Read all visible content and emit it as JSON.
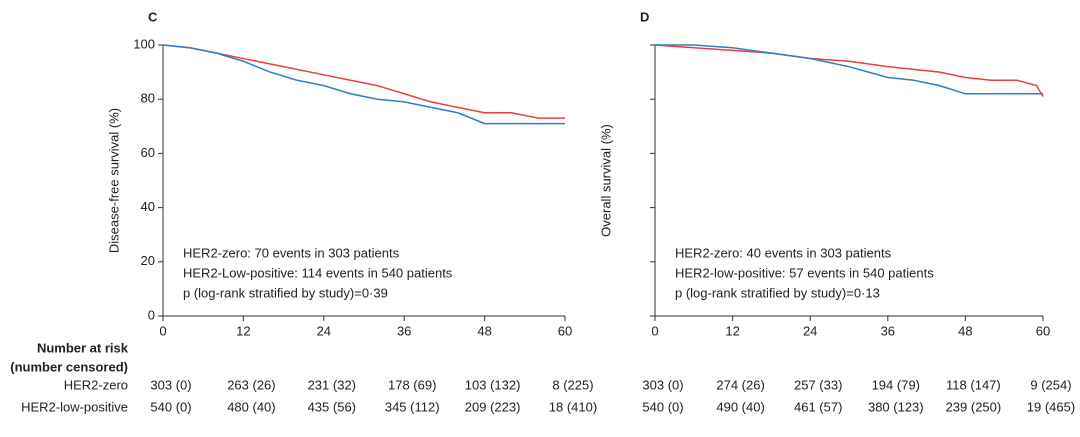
{
  "risk_table_header": [
    "Number at risk",
    "(number censored)"
  ],
  "risk_table_row_labels": [
    "HER2-zero",
    "HER2-low-positive"
  ],
  "chart_data": [
    {
      "type": "line",
      "panel": "C",
      "ylabel": "Disease-free survival (%)",
      "x": [
        0,
        4,
        8,
        12,
        16,
        20,
        24,
        28,
        32,
        36,
        40,
        44,
        48,
        52,
        56,
        60
      ],
      "series": [
        {
          "color": "#e8413c",
          "values": [
            100,
            99,
            97,
            95,
            93,
            91,
            89,
            87,
            85,
            82,
            79,
            77,
            75,
            75,
            73,
            73
          ]
        },
        {
          "color": "#2f7fc1",
          "values": [
            100,
            99,
            97,
            94,
            90,
            87,
            85,
            82,
            80,
            79,
            77,
            75,
            71,
            71,
            71,
            71
          ]
        }
      ],
      "xlim": [
        0,
        60
      ],
      "xticks": [
        0,
        12,
        24,
        36,
        48,
        60
      ],
      "ylim": [
        0,
        100
      ],
      "yticks": [
        0,
        20,
        40,
        60,
        80,
        100
      ],
      "show_ytick_labels": true,
      "annotations": [
        "HER2-zero: 70 events in 303 patients",
        "HER2-Low-positive: 114 events in 540 patients",
        "p (log-rank stratified by study)=0·39"
      ],
      "risk_table": [
        [
          "303 (0)",
          "263 (26)",
          "231 (32)",
          "178 (69)",
          "103 (132)",
          "8 (225)"
        ],
        [
          "540 (0)",
          "480 (40)",
          "435 (56)",
          "345 (112)",
          "209 (223)",
          "18 (410)"
        ]
      ]
    },
    {
      "type": "line",
      "panel": "D",
      "ylabel": "Overall survival (%)",
      "x": [
        0,
        6,
        12,
        18,
        24,
        30,
        36,
        40,
        44,
        48,
        52,
        56,
        59,
        60
      ],
      "series": [
        {
          "color": "#e8413c",
          "values": [
            100,
            99,
            98,
            97,
            95,
            94,
            92,
            91,
            90,
            88,
            87,
            87,
            85,
            81
          ]
        },
        {
          "color": "#2f7fc1",
          "values": [
            100,
            100,
            99,
            97,
            95,
            92,
            88,
            87,
            85,
            82,
            82,
            82,
            82,
            82
          ]
        }
      ],
      "xlim": [
        0,
        60
      ],
      "xticks": [
        0,
        12,
        24,
        36,
        48,
        60
      ],
      "ylim": [
        0,
        100
      ],
      "yticks": [
        0,
        20,
        40,
        60,
        80,
        100
      ],
      "show_ytick_labels": false,
      "annotations": [
        "HER2-zero: 40 events in 303 patients",
        "HER2-low-positive: 57 events in 540 patients",
        "p (log-rank stratified by study)=0·13"
      ],
      "risk_table": [
        [
          "303 (0)",
          "274 (26)",
          "257 (33)",
          "194 (79)",
          "118 (147)",
          "9 (254)"
        ],
        [
          "540 (0)",
          "490 (40)",
          "461 (57)",
          "380 (123)",
          "239 (250)",
          "19 (465)"
        ]
      ]
    }
  ]
}
